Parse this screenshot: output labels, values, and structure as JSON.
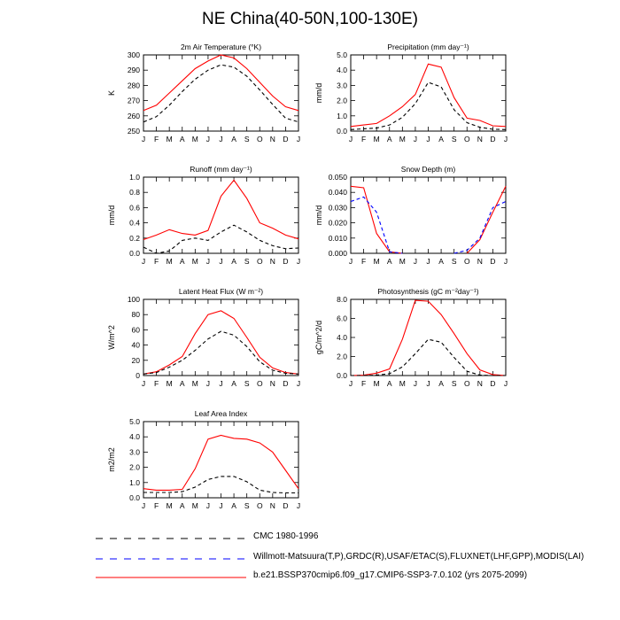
{
  "page": {
    "title": "NE China(40-50N,100-130E)"
  },
  "legend": [
    {
      "label": "CMC 1980-1996",
      "color": "#000000",
      "dash": "8,8"
    },
    {
      "label": "Willmott-Matsuura(T,P),GRDC(R),USAF/ETAC(S),FLUXNET(LHF,GPP),MODIS(LAI)",
      "color": "#0000ff",
      "dash": "8,8"
    },
    {
      "label": "b.e21.BSSP370cmip6.f09_g17.CMIP6-SSP3-7.0.102 (yrs 2075-2099)",
      "color": "#ff0000",
      "dash": ""
    }
  ],
  "chart_data": [
    {
      "type": "line",
      "title": "2m Air Temperature (°K)",
      "ylabel": "K",
      "x": [
        "J",
        "F",
        "M",
        "A",
        "M",
        "J",
        "J",
        "A",
        "S",
        "O",
        "N",
        "D",
        "J"
      ],
      "ylim": [
        250,
        300
      ],
      "yticks": [
        "250",
        "260",
        "270",
        "280",
        "290",
        "300"
      ],
      "series": [
        {
          "color": "#ff0000",
          "style": "solid",
          "values": [
            263.5,
            267,
            275,
            283,
            291,
            296,
            300,
            298,
            291,
            282,
            273,
            266,
            263.5
          ]
        },
        {
          "color": "#000000",
          "style": "dashed",
          "values": [
            256,
            259.5,
            267,
            276,
            284,
            290,
            293.5,
            292,
            286,
            277,
            267.5,
            258.5,
            256
          ]
        }
      ]
    },
    {
      "type": "line",
      "title": "Precipitation (mm day⁻¹)",
      "ylabel": "mm/d",
      "x": [
        "J",
        "F",
        "M",
        "A",
        "M",
        "J",
        "J",
        "A",
        "S",
        "O",
        "N",
        "D",
        "J"
      ],
      "ylim": [
        0,
        5
      ],
      "yticks": [
        "0.0",
        "1.0",
        "2.0",
        "3.0",
        "4.0",
        "5.0"
      ],
      "series": [
        {
          "color": "#ff0000",
          "style": "solid",
          "values": [
            0.3,
            0.4,
            0.5,
            1.0,
            1.6,
            2.4,
            4.4,
            4.2,
            2.2,
            0.85,
            0.7,
            0.35,
            0.3
          ]
        },
        {
          "color": "#000000",
          "style": "dashed",
          "values": [
            0.1,
            0.15,
            0.2,
            0.4,
            0.9,
            1.8,
            3.2,
            2.9,
            1.4,
            0.55,
            0.25,
            0.12,
            0.1
          ]
        }
      ]
    },
    {
      "type": "line",
      "title": "Runoff (mm day⁻¹)",
      "ylabel": "mm/d",
      "x": [
        "J",
        "F",
        "M",
        "A",
        "M",
        "J",
        "J",
        "A",
        "S",
        "O",
        "N",
        "D",
        "J"
      ],
      "ylim": [
        0,
        1
      ],
      "yticks": [
        "0.0",
        "0.2",
        "0.4",
        "0.6",
        "0.8",
        "1.0"
      ],
      "series": [
        {
          "color": "#ff0000",
          "style": "solid",
          "values": [
            0.18,
            0.24,
            0.31,
            0.26,
            0.24,
            0.3,
            0.75,
            0.96,
            0.72,
            0.4,
            0.33,
            0.24,
            0.19
          ]
        },
        {
          "color": "#000000",
          "style": "dashed",
          "values": [
            0.08,
            0.0,
            0.03,
            0.17,
            0.2,
            0.17,
            0.28,
            0.37,
            0.28,
            0.17,
            0.1,
            0.06,
            0.07
          ]
        }
      ]
    },
    {
      "type": "line",
      "title": "Snow Depth (m)",
      "ylabel": "mm/d",
      "x": [
        "J",
        "F",
        "M",
        "A",
        "M",
        "J",
        "J",
        "A",
        "S",
        "O",
        "N",
        "D",
        "J"
      ],
      "ylim": [
        0,
        0.05
      ],
      "yticks": [
        "0.000",
        "0.010",
        "0.020",
        "0.030",
        "0.040",
        "0.050"
      ],
      "series": [
        {
          "color": "#ff0000",
          "style": "solid",
          "values": [
            0.044,
            0.043,
            0.013,
            0.001,
            0.0,
            null,
            null,
            null,
            null,
            0.0,
            0.009,
            0.027,
            0.044
          ]
        },
        {
          "color": "#0000ff",
          "style": "dashed",
          "values": [
            0.034,
            0.037,
            0.027,
            0.001,
            0.0,
            null,
            null,
            null,
            0.0,
            0.002,
            0.01,
            0.03,
            0.034
          ]
        }
      ]
    },
    {
      "type": "line",
      "title": "Latent Heat Flux (W m⁻²)",
      "ylabel": "W/m^2",
      "x": [
        "J",
        "F",
        "M",
        "A",
        "M",
        "J",
        "J",
        "A",
        "S",
        "O",
        "N",
        "D",
        "J"
      ],
      "ylim": [
        0,
        100
      ],
      "yticks": [
        "0",
        "20",
        "40",
        "60",
        "80",
        "100"
      ],
      "series": [
        {
          "color": "#ff0000",
          "style": "solid",
          "values": [
            2,
            5,
            14,
            25,
            55,
            80,
            85,
            75,
            50,
            24,
            10,
            4,
            2
          ]
        },
        {
          "color": "#000000",
          "style": "dashed",
          "values": [
            2,
            4,
            11,
            20,
            33,
            48,
            58,
            53,
            38,
            18,
            7,
            3,
            2
          ]
        }
      ]
    },
    {
      "type": "line",
      "title": "Photosynthesis (gC m⁻²day⁻¹)",
      "ylabel": "gC/m^2/d",
      "x": [
        "J",
        "F",
        "M",
        "A",
        "M",
        "J",
        "J",
        "A",
        "S",
        "O",
        "N",
        "D",
        "J"
      ],
      "ylim": [
        0,
        8
      ],
      "yticks": [
        "0.0",
        "2.0",
        "4.0",
        "6.0",
        "8.0"
      ],
      "series": [
        {
          "color": "#ff0000",
          "style": "solid",
          "values": [
            0.0,
            0.05,
            0.25,
            0.7,
            3.8,
            7.9,
            7.8,
            6.4,
            4.4,
            2.3,
            0.6,
            0.1,
            0.0
          ]
        },
        {
          "color": "#000000",
          "style": "dashed",
          "values": [
            0.0,
            0.0,
            0.05,
            0.2,
            0.9,
            2.3,
            3.8,
            3.5,
            1.9,
            0.45,
            0.05,
            0.0,
            0.0
          ]
        }
      ]
    },
    {
      "type": "line",
      "title": "Leaf Area Index",
      "ylabel": "m2/m2",
      "x": [
        "J",
        "F",
        "M",
        "A",
        "M",
        "J",
        "J",
        "A",
        "S",
        "O",
        "N",
        "D",
        "J"
      ],
      "ylim": [
        0,
        5
      ],
      "yticks": [
        "0.0",
        "1.0",
        "2.0",
        "3.0",
        "4.0",
        "5.0"
      ],
      "series": [
        {
          "color": "#ff0000",
          "style": "solid",
          "values": [
            0.6,
            0.5,
            0.5,
            0.55,
            1.9,
            3.85,
            4.1,
            3.9,
            3.85,
            3.6,
            3.0,
            1.8,
            0.6
          ]
        },
        {
          "color": "#000000",
          "style": "dashed",
          "values": [
            0.35,
            0.35,
            0.35,
            0.4,
            0.7,
            1.2,
            1.4,
            1.4,
            1.05,
            0.5,
            0.35,
            0.32,
            0.32
          ]
        }
      ]
    }
  ]
}
